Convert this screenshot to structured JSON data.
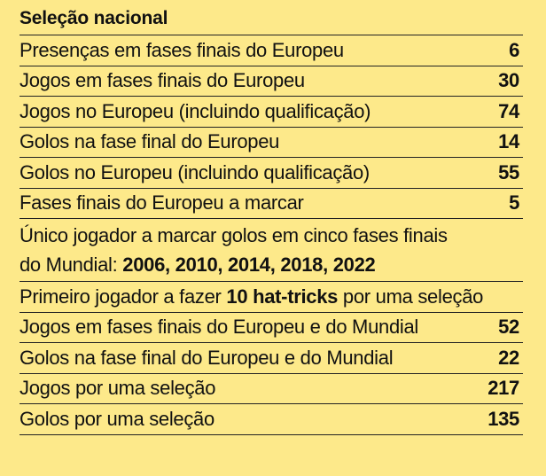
{
  "title": "Seleção nacional",
  "rows": [
    {
      "label": "Presenças em fases finais do Europeu",
      "value": "6"
    },
    {
      "label": "Jogos em fases finais do Europeu",
      "value": "30"
    },
    {
      "label": "Jogos no Europeu (incluindo qualificação)",
      "value": "74"
    },
    {
      "label": "Golos na fase final do Europeu",
      "value": "14"
    },
    {
      "label": "Golos no Europeu (incluindo qualificação)",
      "value": "55"
    },
    {
      "label": "Fases finais do Europeu a marcar",
      "value": "5"
    }
  ],
  "mundial_note": {
    "line1": "Único jogador a marcar golos em cinco fases finais",
    "line2_prefix": "do Mundial: ",
    "line2_bold": "2006, 2010, 2014, 2018, 2022"
  },
  "hat_trick_note": {
    "prefix": "Primeiro jogador a fazer ",
    "bold": "10 hat-tricks",
    "suffix": " por uma seleção"
  },
  "rows2": [
    {
      "label": "Jogos em fases finais do Europeu e do Mundial",
      "value": "52"
    },
    {
      "label": "Golos na fase final do Europeu e do Mundial",
      "value": "22"
    },
    {
      "label": "Jogos por uma seleção",
      "value": "217"
    },
    {
      "label": "Golos por uma seleção",
      "value": "135"
    }
  ]
}
